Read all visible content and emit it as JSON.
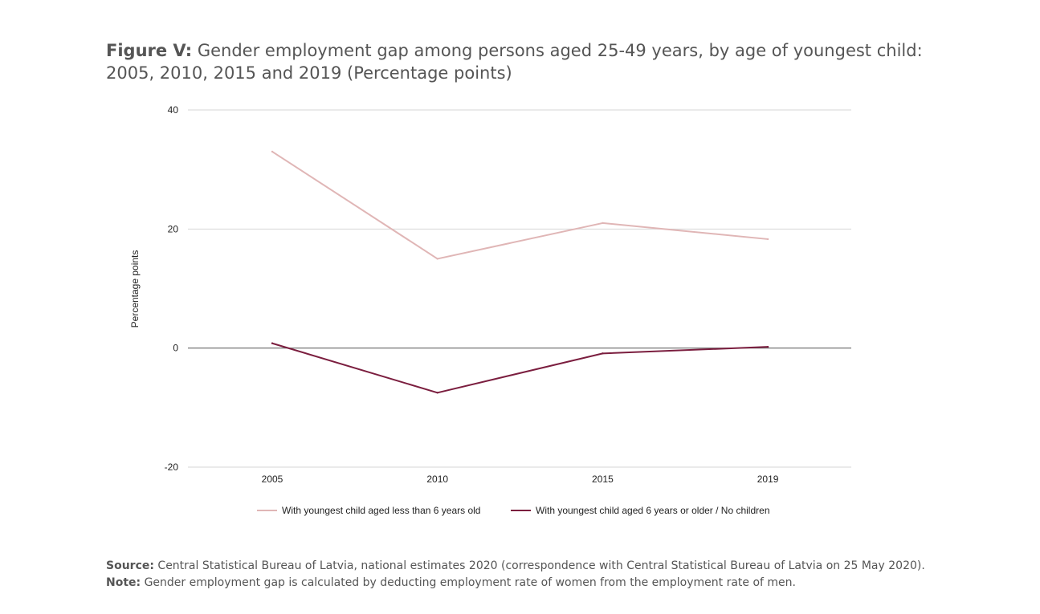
{
  "figure": {
    "label": "Figure V:",
    "title": "Gender employment gap among persons aged 25-49 years, by age of youngest child: 2005, 2010, 2015 and 2019 (Percentage points)"
  },
  "chart_data": {
    "type": "line",
    "title": "Gender employment gap among persons aged 25-49 years, by age of youngest child: 2005, 2010, 2015 and 2019 (Percentage points)",
    "ylabel": "Percentage points",
    "xlabel": "",
    "categories": [
      "2005",
      "2010",
      "2015",
      "2019"
    ],
    "yticks": [
      "40",
      "20",
      "0",
      "-20"
    ],
    "ylim": [
      -20,
      40
    ],
    "grid": true,
    "legend_position": "bottom",
    "series": [
      {
        "name": "With youngest child aged less than 6 years old",
        "color": "#e0b6b6",
        "values": [
          33,
          15,
          21,
          18.3
        ]
      },
      {
        "name": "With youngest child aged 6 years or older / No children",
        "color": "#7b1e3f",
        "values": [
          0.8,
          -7.5,
          -0.9,
          0.2
        ]
      }
    ]
  },
  "footer": {
    "source_label": "Source:",
    "source_text": "Central Statistical Bureau of Latvia, national estimates 2020 (correspondence with Central Statistical Bureau of Latvia on 25 May 2020).",
    "note_label": "Note:",
    "note_text": "Gender employment gap is calculated by deducting employment rate of women from the employment rate of men."
  }
}
